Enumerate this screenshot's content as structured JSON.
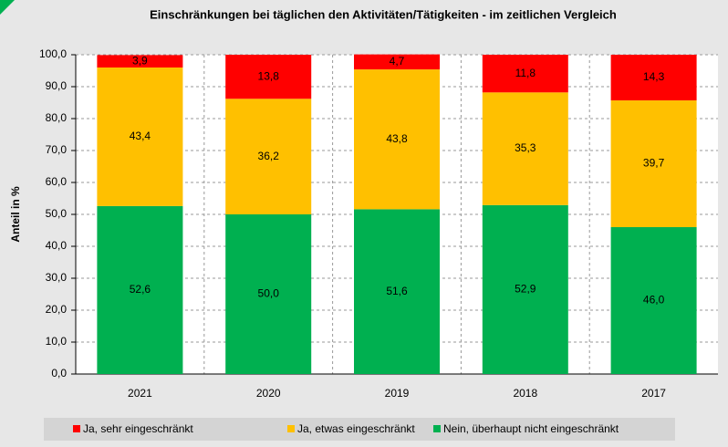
{
  "chart_data": {
    "type": "stacked_bar",
    "title": "Einschränkungen bei täglichen den Aktivitäten/Tätigkeiten - im zeitlichen Vergleich",
    "y_label": "Anteil in %",
    "categories": [
      "2021",
      "2020",
      "2019",
      "2018",
      "2017"
    ],
    "series": [
      {
        "name": "Ja, sehr eingeschränkt",
        "color": "#ff0000",
        "values": [
          3.9,
          13.8,
          4.7,
          11.8,
          14.3
        ],
        "value_labels": [
          "3,9",
          "13,8",
          "4,7",
          "11,8",
          "14,3"
        ]
      },
      {
        "name": "Ja, etwas eingeschränkt",
        "color": "#ffc000",
        "values": [
          43.4,
          36.2,
          43.8,
          35.3,
          39.7
        ],
        "value_labels": [
          "43,4",
          "36,2",
          "43,8",
          "35,3",
          "39,7"
        ]
      },
      {
        "name": "Nein, überhaupt nicht eingeschränkt",
        "color": "#00b050",
        "values": [
          52.6,
          50.0,
          51.6,
          52.9,
          46.0
        ],
        "value_labels": [
          "52,6",
          "50,0",
          "51,6",
          "52,9",
          "46,0"
        ]
      }
    ],
    "ylim": [
      0,
      100
    ],
    "yticks": [
      {
        "value": 0,
        "label": "0,0"
      },
      {
        "value": 10,
        "label": "10,0"
      },
      {
        "value": 20,
        "label": "20,0"
      },
      {
        "value": 30,
        "label": "30,0"
      },
      {
        "value": 40,
        "label": "40,0"
      },
      {
        "value": 50,
        "label": "50,0"
      },
      {
        "value": 60,
        "label": "60,0"
      },
      {
        "value": 70,
        "label": "70,0"
      },
      {
        "value": 80,
        "label": "80,0"
      },
      {
        "value": 90,
        "label": "90,0"
      },
      {
        "value": 100,
        "label": "100,0"
      }
    ],
    "grid": true,
    "legend": "bottom"
  }
}
